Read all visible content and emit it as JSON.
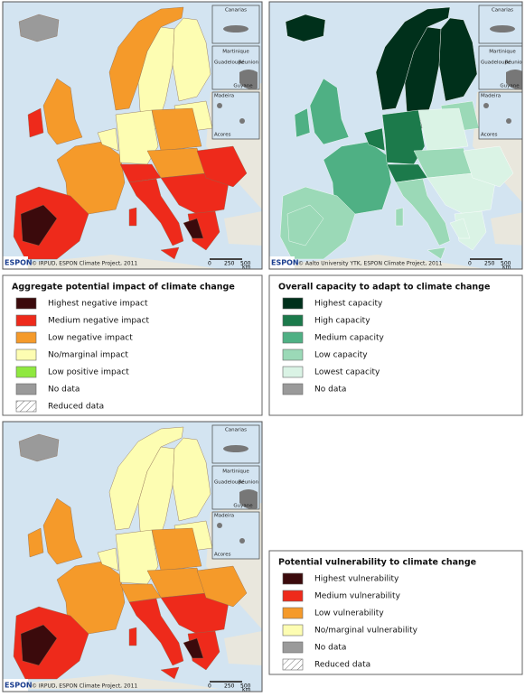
{
  "maps": [
    {
      "logo": "ESPON",
      "credit": "© IRPUD, ESPON Climate Project, 2011",
      "scale": [
        "0",
        "250",
        "500",
        "km"
      ],
      "insets": [
        "Canarias",
        "Martinique",
        "Guadeloupe",
        "Réunion",
        "Guyane",
        "Madeira",
        "Acores"
      ]
    },
    {
      "logo": "ESPON",
      "credit": "© Aalto University YTK, ESPON Climate Project, 2011",
      "scale": [
        "0",
        "250",
        "500",
        "km"
      ],
      "insets": [
        "Canarias",
        "Martinique",
        "Guadeloupe",
        "Réunion",
        "Guyane",
        "Madeira",
        "Acores"
      ]
    },
    {
      "logo": "ESPON",
      "credit": "© IRPUD, ESPON Climate Project, 2011",
      "scale": [
        "0",
        "250",
        "500",
        "km"
      ],
      "insets": [
        "Canarias",
        "Martinique",
        "Guadeloupe",
        "Réunion",
        "Guyane",
        "Madeira",
        "Acores"
      ]
    }
  ],
  "legends": [
    {
      "title": "Aggregate potential impact of climate change",
      "items": [
        {
          "label": "Highest negative impact",
          "color": "#3b0a0c"
        },
        {
          "label": "Medium negative impact",
          "color": "#ee2a1b"
        },
        {
          "label": "Low negative impact",
          "color": "#f59a2a"
        },
        {
          "label": "No/marginal impact",
          "color": "#fdfdb2"
        },
        {
          "label": "Low positive impact",
          "color": "#8fe83f"
        },
        {
          "label": "No data",
          "color": "#9a9a9a"
        },
        {
          "label": "Reduced data",
          "color": "#ffffff",
          "hatch": true
        }
      ]
    },
    {
      "title": "Overall capacity to adapt to climate change",
      "items": [
        {
          "label": "Highest capacity",
          "color": "#00301b"
        },
        {
          "label": "High capacity",
          "color": "#1c7a4b"
        },
        {
          "label": "Medium capacity",
          "color": "#4fb084"
        },
        {
          "label": "Low capacity",
          "color": "#9bd9b7"
        },
        {
          "label": "Lowest capacity",
          "color": "#daf3e5"
        },
        {
          "label": "No data",
          "color": "#9a9a9a"
        }
      ]
    },
    {
      "title": "Potential vulnerability to climate change",
      "items": [
        {
          "label": "Highest vulnerability",
          "color": "#3b0a0c"
        },
        {
          "label": "Medium vulnerability",
          "color": "#ee2a1b"
        },
        {
          "label": "Low vulnerability",
          "color": "#f59a2a"
        },
        {
          "label": "No/marginal vulnerability",
          "color": "#fdfdb2"
        },
        {
          "label": "No data",
          "color": "#9a9a9a"
        },
        {
          "label": "Reduced data",
          "color": "#ffffff",
          "hatch": true
        }
      ]
    }
  ]
}
